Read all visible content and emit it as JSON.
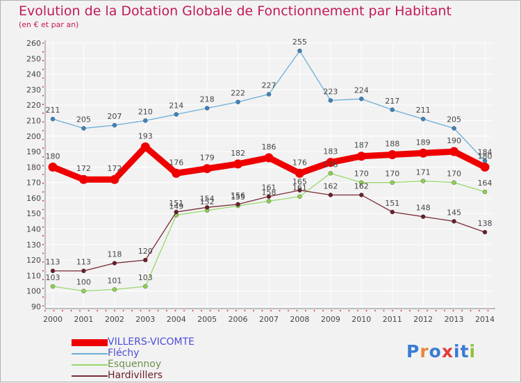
{
  "colors": {
    "title": "#c2185b",
    "axis": "#888888",
    "grid": "#ffffff",
    "dots": "#cc0000",
    "labels": "#444444",
    "logo": [
      "#3a7bd5",
      "#e8873a",
      "#3a7bd5",
      "#e23b3b",
      "#3a7bd5",
      "#3a7bd5",
      "#8fc33a"
    ]
  },
  "logo": {
    "text": "Proxiti",
    "letters": [
      "P",
      "r",
      "o",
      "x",
      "i",
      "t",
      "i"
    ]
  },
  "chart_data": {
    "type": "line",
    "title": "Evolution de la Dotation Globale de Fonctionnement par Habitant",
    "subtitle": "(en € et par an)",
    "xlabel": "",
    "ylabel": "",
    "x": [
      2000,
      2001,
      2002,
      2003,
      2004,
      2005,
      2006,
      2007,
      2008,
      2009,
      2010,
      2011,
      2012,
      2013,
      2014
    ],
    "ylim": [
      90,
      260
    ],
    "yticks": [
      90,
      100,
      110,
      120,
      130,
      140,
      150,
      160,
      170,
      180,
      190,
      200,
      210,
      220,
      230,
      240,
      250,
      260
    ],
    "grid": true,
    "legend_position": "bottom-left",
    "series": [
      {
        "name": "Fléchy",
        "color": "#6baed6",
        "dot": "#3b83c0",
        "label_color": "#4c4cd8",
        "thick": false,
        "values": [
          211,
          205,
          207,
          210,
          214,
          218,
          222,
          227,
          255,
          223,
          224,
          217,
          211,
          205,
          184
        ]
      },
      {
        "name": "Esquennoy",
        "color": "#98d86a",
        "dot": "#8cd250",
        "label_color": "#6f8f4a",
        "thick": false,
        "values": [
          103,
          100,
          101,
          103,
          149,
          152,
          155,
          158,
          161,
          176,
          170,
          170,
          171,
          170,
          164
        ]
      },
      {
        "name": "Hardivillers",
        "color": "#7a2a36",
        "dot": "#6a1f28",
        "label_color": "#6a1f28",
        "thick": false,
        "values": [
          113,
          113,
          118,
          120,
          151,
          154,
          156,
          161,
          165,
          162,
          162,
          151,
          148,
          145,
          138
        ]
      },
      {
        "name": "VILLERS-VICOMTE",
        "color": "#ee0000",
        "dot": "#ee0000",
        "label_color": "#4c4cd8",
        "thick": true,
        "values": [
          180,
          172,
          172,
          193,
          176,
          179,
          182,
          186,
          176,
          183,
          187,
          188,
          189,
          190,
          180
        ]
      }
    ]
  }
}
